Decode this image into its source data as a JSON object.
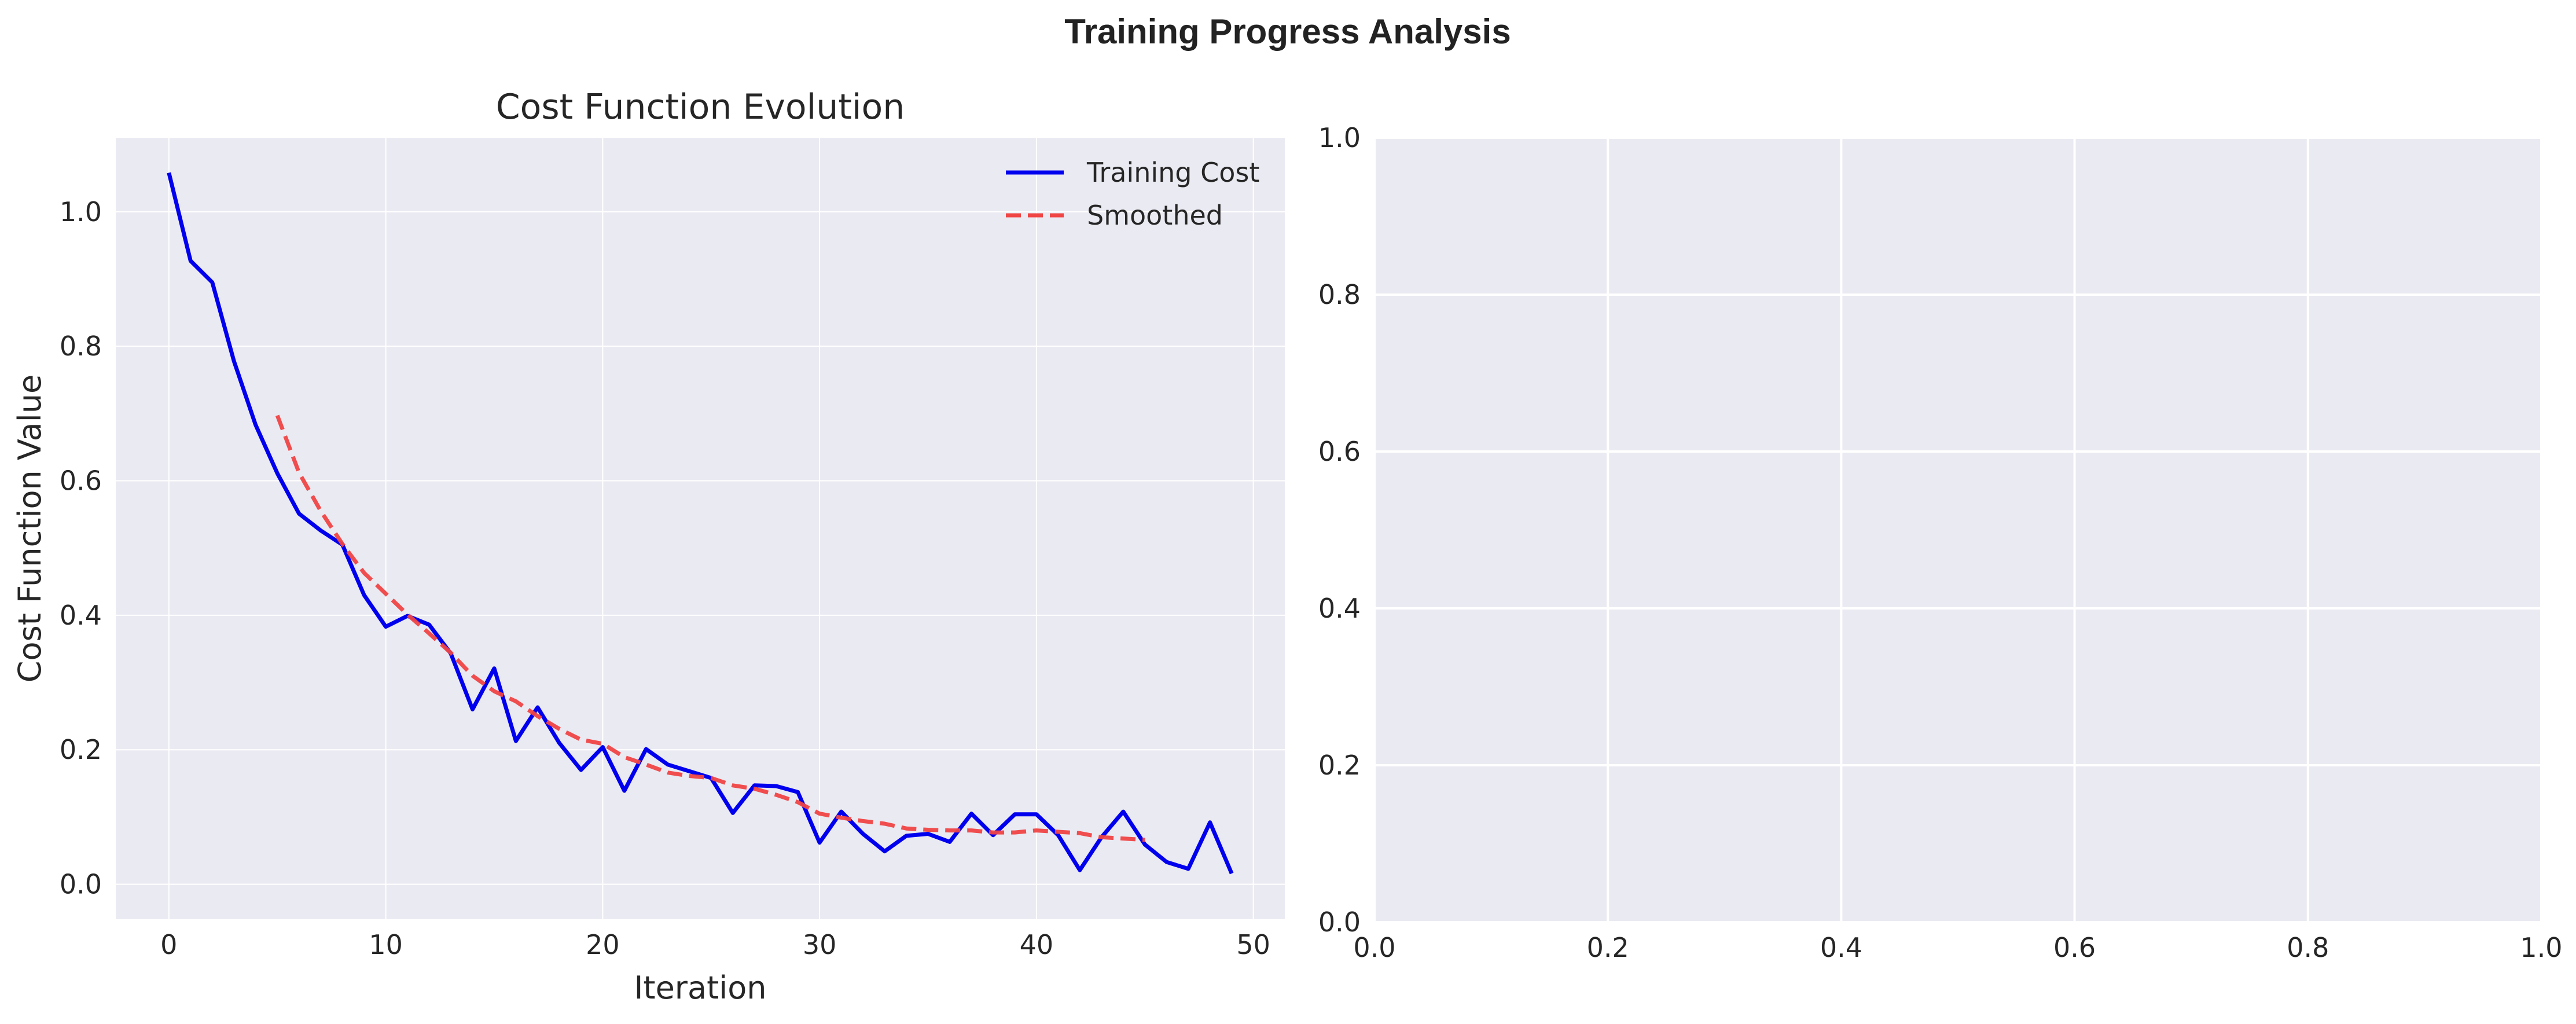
{
  "figure": {
    "suptitle": "Training Progress Analysis"
  },
  "colors": {
    "axes_bg": "#eaeaf2",
    "grid": "#ffffff",
    "training": "#0000ee",
    "smoothed": "#f04545",
    "text": "#262626"
  },
  "chart_data": [
    {
      "type": "line",
      "title": "Cost Function Evolution",
      "xlabel": "Iteration",
      "ylabel": "Cost Function Value",
      "xlim": [
        -2.45,
        51.45
      ],
      "ylim": [
        -0.052,
        1.11
      ],
      "xticks": [
        0,
        10,
        20,
        30,
        40,
        50
      ],
      "yticks": [
        0.0,
        0.2,
        0.4,
        0.6,
        0.8,
        1.0
      ],
      "xtick_labels": [
        "0",
        "10",
        "20",
        "30",
        "40",
        "50"
      ],
      "ytick_labels": [
        "0.0",
        "0.2",
        "0.4",
        "0.6",
        "0.8",
        "1.0"
      ],
      "grid": true,
      "legend_position": "upper right",
      "series": [
        {
          "name": "Training Cost",
          "style": "solid",
          "color": "#0000ee",
          "x": [
            0,
            1,
            2,
            3,
            4,
            5,
            6,
            7,
            8,
            9,
            10,
            11,
            12,
            13,
            14,
            15,
            16,
            17,
            18,
            19,
            20,
            21,
            22,
            23,
            24,
            25,
            26,
            27,
            28,
            29,
            30,
            31,
            32,
            33,
            34,
            35,
            36,
            37,
            38,
            39,
            40,
            41,
            42,
            43,
            44,
            45,
            46,
            47,
            48,
            49
          ],
          "y": [
            1.058,
            0.927,
            0.895,
            0.778,
            0.683,
            0.611,
            0.551,
            0.526,
            0.505,
            0.43,
            0.383,
            0.399,
            0.386,
            0.343,
            0.26,
            0.321,
            0.213,
            0.263,
            0.21,
            0.17,
            0.204,
            0.139,
            0.201,
            0.178,
            0.168,
            0.158,
            0.106,
            0.147,
            0.146,
            0.137,
            0.062,
            0.108,
            0.075,
            0.049,
            0.072,
            0.075,
            0.063,
            0.105,
            0.073,
            0.104,
            0.104,
            0.073,
            0.021,
            0.07,
            0.108,
            0.059,
            0.033,
            0.023,
            0.092,
            0.016
          ]
        },
        {
          "name": "Smoothed",
          "style": "dashed",
          "color": "#f04545",
          "x": [
            5,
            6,
            7,
            8,
            9,
            10,
            11,
            12,
            13,
            14,
            15,
            16,
            17,
            18,
            19,
            20,
            21,
            22,
            23,
            24,
            25,
            26,
            27,
            28,
            29,
            30,
            31,
            32,
            33,
            34,
            35,
            36,
            37,
            38,
            39,
            40,
            41,
            42,
            43,
            44,
            45
          ],
          "y": [
            0.697,
            0.612,
            0.555,
            0.506,
            0.463,
            0.432,
            0.401,
            0.373,
            0.344,
            0.31,
            0.287,
            0.272,
            0.25,
            0.231,
            0.215,
            0.209,
            0.189,
            0.178,
            0.166,
            0.161,
            0.158,
            0.147,
            0.142,
            0.133,
            0.122,
            0.105,
            0.099,
            0.094,
            0.09,
            0.083,
            0.081,
            0.08,
            0.08,
            0.077,
            0.077,
            0.08,
            0.078,
            0.076,
            0.07,
            0.068,
            0.066
          ]
        }
      ]
    },
    {
      "type": "line",
      "title": "",
      "xlabel": "",
      "ylabel": "",
      "xlim": [
        0,
        1
      ],
      "ylim": [
        0,
        1
      ],
      "xticks": [
        0.0,
        0.2,
        0.4,
        0.6,
        0.8,
        1.0
      ],
      "yticks": [
        0.0,
        0.2,
        0.4,
        0.6,
        0.8,
        1.0
      ],
      "xtick_labels": [
        "0.0",
        "0.2",
        "0.4",
        "0.6",
        "0.8",
        "1.0"
      ],
      "ytick_labels": [
        "0.0",
        "0.2",
        "0.4",
        "0.6",
        "0.8",
        "1.0"
      ],
      "grid": true,
      "series": []
    }
  ]
}
